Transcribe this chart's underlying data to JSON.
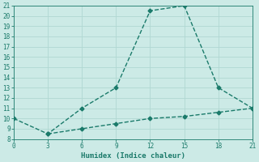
{
  "xlabel": "Humidex (Indice chaleur)",
  "line1_x": [
    0,
    3,
    6,
    9,
    12,
    15,
    18,
    21
  ],
  "line1_y": [
    10,
    8.5,
    11,
    13,
    20.5,
    21,
    13,
    11
  ],
  "line2_x": [
    3,
    6,
    9,
    12,
    15,
    18,
    21
  ],
  "line2_y": [
    8.5,
    9.0,
    9.5,
    10.0,
    10.2,
    10.6,
    11
  ],
  "line_color": "#1a7a6a",
  "bg_color": "#cceae6",
  "grid_color": "#b0d8d2",
  "xlim": [
    0,
    21
  ],
  "ylim": [
    8,
    21
  ],
  "xticks": [
    0,
    3,
    6,
    9,
    12,
    15,
    18,
    21
  ],
  "yticks": [
    8,
    9,
    10,
    11,
    12,
    13,
    14,
    15,
    16,
    17,
    18,
    19,
    20,
    21
  ],
  "marker": "D",
  "markersize": 2.5,
  "linewidth": 1.0,
  "tick_fontsize": 5.5,
  "xlabel_fontsize": 6.5
}
